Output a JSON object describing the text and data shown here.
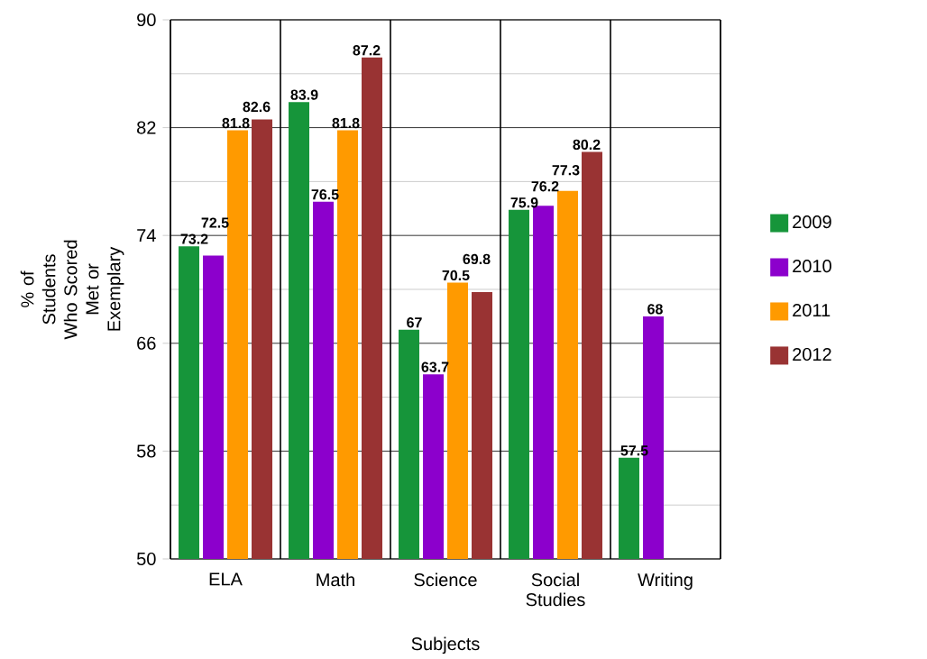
{
  "chart_data": {
    "type": "bar",
    "xlabel": "Subjects",
    "ylabel": "% of Students Who Scored Met or Exemplary",
    "categories": [
      "ELA",
      "Math",
      "Science",
      "Social Studies",
      "Writing"
    ],
    "series": [
      {
        "name": "2009",
        "color": "#16953a",
        "values": [
          73.2,
          83.9,
          67,
          75.9,
          57.5
        ]
      },
      {
        "name": "2010",
        "color": "#8c00cc",
        "values": [
          72.5,
          76.5,
          63.7,
          76.2,
          68
        ]
      },
      {
        "name": "2011",
        "color": "#ff9a00",
        "values": [
          81.8,
          81.8,
          70.5,
          77.3,
          null
        ]
      },
      {
        "name": "2012",
        "color": "#993333",
        "values": [
          82.6,
          87.2,
          69.8,
          80.2,
          null
        ]
      }
    ],
    "ylim": [
      50,
      90
    ],
    "yticks": [
      50,
      58,
      66,
      74,
      82,
      90
    ],
    "grid": true,
    "legend": "right",
    "data_labels": true
  }
}
